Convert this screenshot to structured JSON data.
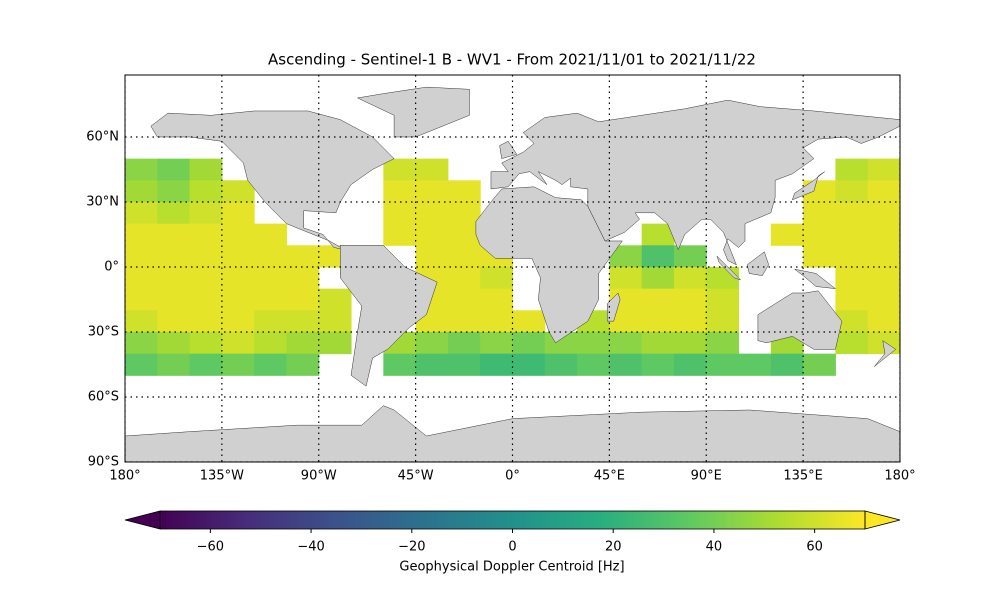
{
  "chart_data": {
    "type": "map",
    "title": "Ascending - Sentinel-1 B - WV1 - From 2021/11/01 to 2021/11/22",
    "xlim": [
      -180,
      180
    ],
    "ylim": [
      -90,
      88.6
    ],
    "xticks": [
      {
        "value": -180,
        "label": "180°"
      },
      {
        "value": -135,
        "label": "135°W"
      },
      {
        "value": -90,
        "label": "90°W"
      },
      {
        "value": -45,
        "label": "45°W"
      },
      {
        "value": 0,
        "label": "0°"
      },
      {
        "value": 45,
        "label": "45°E"
      },
      {
        "value": 90,
        "label": "90°E"
      },
      {
        "value": 135,
        "label": "135°E"
      },
      {
        "value": 180,
        "label": "180°"
      }
    ],
    "yticks": [
      {
        "value": -90,
        "label": "90°S"
      },
      {
        "value": -60,
        "label": "60°S"
      },
      {
        "value": -30,
        "label": "30°S"
      },
      {
        "value": 0,
        "label": "0°"
      },
      {
        "value": 30,
        "label": "30°N"
      },
      {
        "value": 60,
        "label": "60°N"
      }
    ],
    "grid": true,
    "land_color": "#d0d0d0",
    "x": [
      -172.5,
      -157.5,
      -142.5,
      -127.5,
      -112.5,
      -97.5,
      -82.5,
      -67.5,
      -52.5,
      -37.5,
      -22.5,
      -7.5,
      7.5,
      22.5,
      37.5,
      52.5,
      67.5,
      82.5,
      97.5,
      112.5,
      127.5,
      142.5,
      157.5,
      172.5
    ],
    "y": [
      45,
      35,
      25,
      15,
      5,
      -5,
      -15,
      -25,
      -35,
      -45
    ],
    "values": [
      [
        45,
        40,
        50,
        null,
        null,
        null,
        null,
        null,
        60,
        60,
        null,
        null,
        null,
        null,
        null,
        null,
        null,
        null,
        null,
        null,
        null,
        null,
        55,
        60
      ],
      [
        50,
        45,
        55,
        60,
        null,
        null,
        null,
        null,
        65,
        65,
        65,
        null,
        null,
        null,
        null,
        null,
        null,
        null,
        null,
        null,
        null,
        65,
        60,
        65
      ],
      [
        60,
        55,
        60,
        65,
        null,
        null,
        null,
        null,
        65,
        65,
        65,
        null,
        null,
        null,
        null,
        null,
        null,
        null,
        null,
        null,
        null,
        65,
        65,
        65
      ],
      [
        65,
        65,
        65,
        65,
        65,
        null,
        null,
        null,
        65,
        65,
        65,
        null,
        null,
        null,
        null,
        null,
        55,
        null,
        null,
        null,
        65,
        65,
        65,
        65
      ],
      [
        65,
        65,
        65,
        65,
        65,
        65,
        65,
        null,
        null,
        65,
        65,
        65,
        null,
        null,
        null,
        45,
        30,
        40,
        null,
        null,
        null,
        65,
        65,
        65
      ],
      [
        65,
        65,
        65,
        65,
        65,
        65,
        null,
        null,
        null,
        65,
        65,
        60,
        null,
        null,
        null,
        60,
        50,
        60,
        55,
        null,
        null,
        null,
        65,
        65
      ],
      [
        65,
        65,
        65,
        65,
        65,
        65,
        60,
        null,
        null,
        65,
        65,
        65,
        null,
        null,
        null,
        65,
        65,
        65,
        60,
        null,
        null,
        null,
        65,
        65
      ],
      [
        60,
        65,
        65,
        65,
        60,
        60,
        60,
        null,
        null,
        65,
        65,
        65,
        65,
        null,
        55,
        65,
        65,
        65,
        60,
        null,
        null,
        null,
        60,
        65
      ],
      [
        45,
        50,
        55,
        60,
        55,
        50,
        50,
        null,
        50,
        45,
        40,
        45,
        40,
        45,
        45,
        45,
        50,
        50,
        45,
        null,
        50,
        null,
        55,
        60
      ],
      [
        35,
        40,
        35,
        40,
        35,
        40,
        null,
        null,
        35,
        30,
        30,
        25,
        25,
        30,
        35,
        30,
        35,
        30,
        35,
        35,
        30,
        40,
        null,
        null
      ]
    ],
    "colormap": [
      "#440154",
      "#472d7b",
      "#3b528b",
      "#2c728e",
      "#21918c",
      "#28ae80",
      "#5ec962",
      "#addc30",
      "#fde725"
    ],
    "colorbar": {
      "label": "Geophysical Doppler Centroid [Hz]",
      "clim": [
        -70,
        70
      ],
      "extend": "both",
      "ticks": [
        {
          "value": -60,
          "label": "−60"
        },
        {
          "value": -40,
          "label": "−40"
        },
        {
          "value": -20,
          "label": "−20"
        },
        0,
        20,
        40,
        60
      ]
    }
  }
}
